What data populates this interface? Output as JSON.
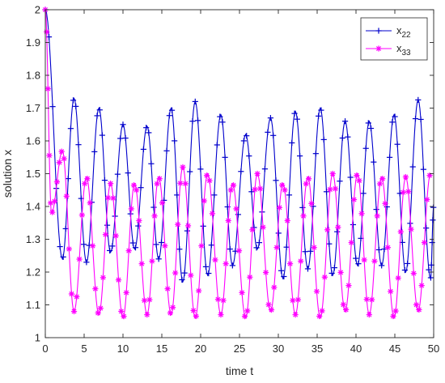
{
  "chart_data": {
    "type": "line",
    "xlabel": "time t",
    "ylabel": "solution x",
    "xlim": [
      0,
      50
    ],
    "ylim": [
      1,
      2
    ],
    "x_ticks": [
      "0",
      "5",
      "10",
      "15",
      "20",
      "25",
      "30",
      "35",
      "40",
      "45",
      "50"
    ],
    "y_ticks": [
      "1",
      "1.1",
      "1.2",
      "1.3",
      "1.4",
      "1.5",
      "1.6",
      "1.7",
      "1.8",
      "1.9",
      "2"
    ],
    "grid": false,
    "legend_position": "top-right",
    "series": [
      {
        "name": "x",
        "name_sub": "22",
        "color": "#0000cc",
        "marker": "plus",
        "peaks": [
          [
            0.0,
            2.0
          ],
          [
            3.7,
            1.73
          ],
          [
            6.9,
            1.7
          ],
          [
            10.0,
            1.65
          ],
          [
            13.1,
            1.645
          ],
          [
            16.2,
            1.7
          ],
          [
            19.3,
            1.72
          ],
          [
            22.6,
            1.68
          ],
          [
            25.8,
            1.62
          ],
          [
            29.0,
            1.67
          ],
          [
            32.2,
            1.69
          ],
          [
            35.4,
            1.7
          ],
          [
            38.6,
            1.66
          ],
          [
            41.7,
            1.66
          ],
          [
            44.9,
            1.68
          ],
          [
            48.0,
            1.725
          ],
          [
            50.0,
            1.4
          ]
        ],
        "troughs": [
          [
            2.2,
            1.24
          ],
          [
            5.3,
            1.23
          ],
          [
            8.4,
            1.26
          ],
          [
            11.5,
            1.27
          ],
          [
            14.6,
            1.24
          ],
          [
            17.7,
            1.17
          ],
          [
            20.9,
            1.19
          ],
          [
            24.1,
            1.22
          ],
          [
            27.3,
            1.27
          ],
          [
            30.6,
            1.18
          ],
          [
            33.8,
            1.21
          ],
          [
            37.0,
            1.19
          ],
          [
            40.2,
            1.22
          ],
          [
            43.3,
            1.22
          ],
          [
            46.4,
            1.2
          ],
          [
            49.6,
            1.18
          ]
        ]
      },
      {
        "name": "x",
        "name_sub": "33",
        "color": "#ff00ff",
        "marker": "asterisk",
        "peaks": [
          [
            0.0,
            2.0
          ],
          [
            2.2,
            1.57
          ],
          [
            5.3,
            1.49
          ],
          [
            8.4,
            1.47
          ],
          [
            11.5,
            1.47
          ],
          [
            14.6,
            1.49
          ],
          [
            17.7,
            1.52
          ],
          [
            20.9,
            1.5
          ],
          [
            24.1,
            1.47
          ],
          [
            27.3,
            1.5
          ],
          [
            30.6,
            1.47
          ],
          [
            33.8,
            1.49
          ],
          [
            37.0,
            1.5
          ],
          [
            40.2,
            1.5
          ],
          [
            43.3,
            1.49
          ],
          [
            46.4,
            1.49
          ],
          [
            49.6,
            1.5
          ]
        ],
        "troughs": [
          [
            0.8,
            1.38
          ],
          [
            3.7,
            1.08
          ],
          [
            6.9,
            1.07
          ],
          [
            10.0,
            1.06
          ],
          [
            13.1,
            1.07
          ],
          [
            16.2,
            1.07
          ],
          [
            19.3,
            1.06
          ],
          [
            22.6,
            1.07
          ],
          [
            25.8,
            1.06
          ],
          [
            29.0,
            1.08
          ],
          [
            32.2,
            1.07
          ],
          [
            35.4,
            1.06
          ],
          [
            38.6,
            1.08
          ],
          [
            41.7,
            1.07
          ],
          [
            44.9,
            1.06
          ],
          [
            48.0,
            1.08
          ]
        ]
      }
    ]
  }
}
